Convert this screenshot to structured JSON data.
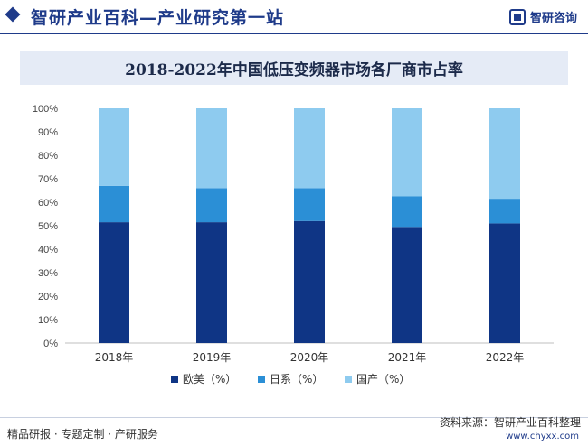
{
  "header": {
    "title": "智研产业百科—产业研究第一站",
    "brand": "智研咨询"
  },
  "chart_data": {
    "type": "bar",
    "stacked": true,
    "title": "2018-2022年中国低压变频器市场各厂商市占率",
    "categories": [
      "2018年",
      "2019年",
      "2020年",
      "2021年",
      "2022年"
    ],
    "series": [
      {
        "name": "欧美（%）",
        "values": [
          51.5,
          51.5,
          52,
          49.5,
          51
        ],
        "color": "#0f3585"
      },
      {
        "name": "日系（%）",
        "values": [
          15.5,
          14.5,
          14,
          13,
          10.5
        ],
        "color": "#2b8fd6"
      },
      {
        "name": "国产（%）",
        "values": [
          33,
          34,
          34,
          37.5,
          38.5
        ],
        "color": "#8ecbef"
      }
    ],
    "ylim": [
      0,
      100
    ],
    "yticks": [
      "0%",
      "10%",
      "20%",
      "30%",
      "40%",
      "50%",
      "60%",
      "70%",
      "80%",
      "90%",
      "100%"
    ],
    "grid": false,
    "legend": "bottom"
  },
  "footer": {
    "left": "精品研报 · 专题定制 · 产研服务",
    "right": "资料来源：智研产业百科整理",
    "url": "www.chyxx.com"
  }
}
